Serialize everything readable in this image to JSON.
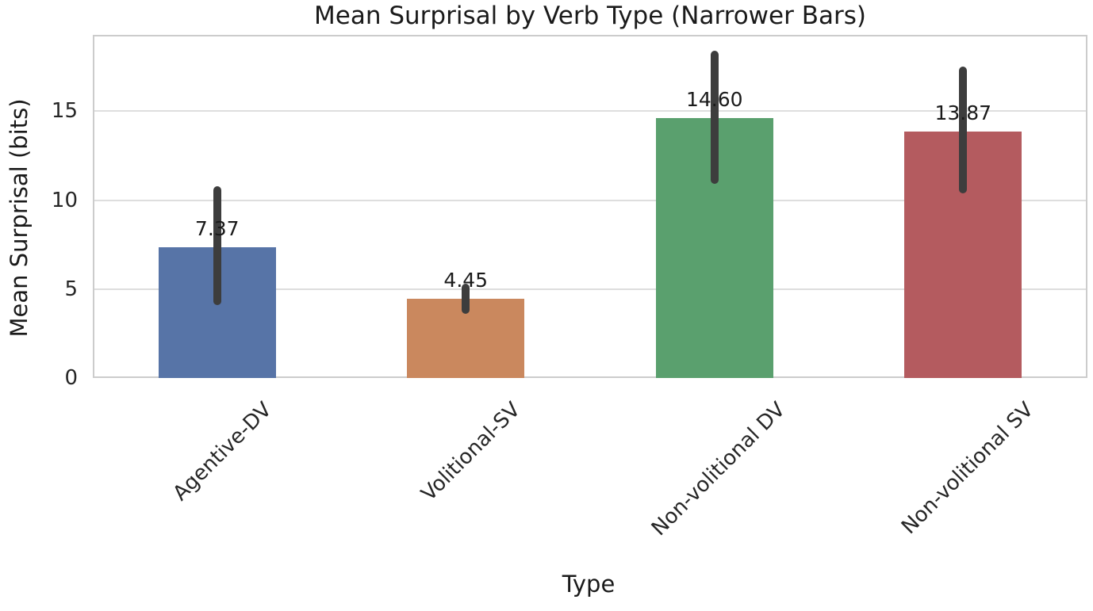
{
  "figure": {
    "title": "Mean Surprisal by Verb Type (Narrower Bars)",
    "xlabel": "Type",
    "ylabel": "Mean Surprisal (bits)"
  },
  "chart_data": {
    "type": "bar",
    "title": "Mean Surprisal by Verb Type (Narrower Bars)",
    "xlabel": "Type",
    "ylabel": "Mean Surprisal (bits)",
    "categories": [
      "Agentive-DV",
      "Volitional-SV",
      "Non-volitional DV",
      "Non-volitional SV"
    ],
    "values": [
      7.37,
      4.45,
      14.6,
      13.87
    ],
    "value_labels": [
      "7.37",
      "4.45",
      "14.60",
      "13.87"
    ],
    "error_bars": [
      [
        4.1,
        10.8
      ],
      [
        3.6,
        5.3
      ],
      [
        10.9,
        18.4
      ],
      [
        10.4,
        17.5
      ]
    ],
    "bar_colors": [
      "#5774a7",
      "#ca885e",
      "#5aa06e",
      "#b45b5f"
    ],
    "errorbar_color": "#3d3d3d",
    "yticks": [
      0,
      5,
      10,
      15
    ],
    "ylim": [
      0,
      19.3
    ],
    "grid": true,
    "legend": null,
    "styles": {
      "grid_color": "#dedede",
      "spine_color": "#cccccc",
      "text_color": "#262626"
    }
  }
}
